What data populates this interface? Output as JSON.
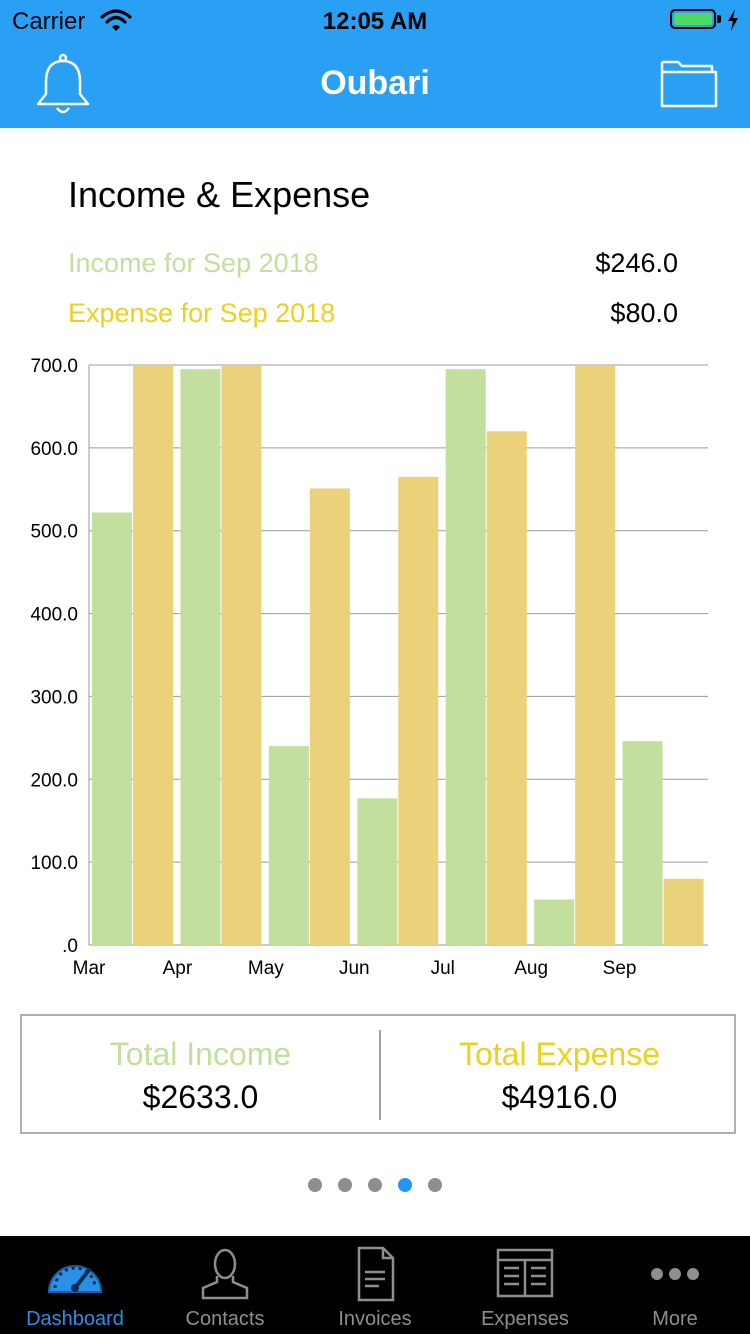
{
  "status_bar": {
    "carrier": "Carrier",
    "time": "12:05 AM"
  },
  "nav": {
    "title": "Oubari",
    "left_icon": "bell-icon",
    "right_icon": "folder-icon"
  },
  "summary": {
    "title": "Income & Expense",
    "income_label": "Income for Sep 2018",
    "income_value": "$246.0",
    "expense_label": "Expense for Sep 2018",
    "expense_value": "$80.0"
  },
  "colors": {
    "accent": "#2aa0f5",
    "income": "#c2df9d",
    "expense": "#ebd17a",
    "income_text": "#c2df9d",
    "expense_text": "#ecd21c",
    "active_dot": "#2196f3",
    "tab_active": "#2a8fe5"
  },
  "chart_data": {
    "type": "bar",
    "categories": [
      "Mar",
      "Apr",
      "May",
      "Jun",
      "Jul",
      "Aug",
      "Sep"
    ],
    "y_ticks": [
      "700.0",
      "600.0",
      "500.0",
      "400.0",
      "300.0",
      "200.0",
      "100.0",
      ".0"
    ],
    "ylim": [
      0,
      700
    ],
    "grid": true,
    "series": [
      {
        "values": [
          522,
          695,
          240,
          177,
          695,
          55,
          246
        ]
      },
      {
        "values": [
          700,
          700,
          551,
          565,
          620,
          700,
          80
        ]
      }
    ]
  },
  "totals": {
    "income_label": "Total Income",
    "income_value": "$2633.0",
    "expense_label": "Total Expense",
    "expense_value": "$4916.0"
  },
  "pager": {
    "count": 5,
    "active_index": 3
  },
  "tabs": [
    {
      "label": "Dashboard",
      "icon": "speedometer-icon",
      "active": true
    },
    {
      "label": "Contacts",
      "icon": "person-icon",
      "active": false
    },
    {
      "label": "Invoices",
      "icon": "document-icon",
      "active": false
    },
    {
      "label": "Expenses",
      "icon": "ledger-icon",
      "active": false
    },
    {
      "label": "More",
      "icon": "more-dots-icon",
      "active": false
    }
  ]
}
